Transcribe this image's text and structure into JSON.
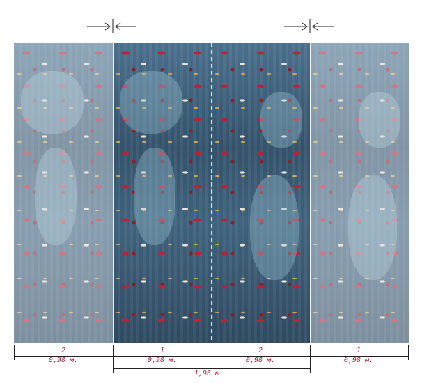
{
  "panels": [
    {
      "number": "2",
      "width": "0,98 м."
    },
    {
      "number": "1",
      "width": "0,98 м."
    },
    {
      "number": "2",
      "width": "0,98 м."
    },
    {
      "number": "1",
      "width": "0,98 м."
    }
  ],
  "total_width": "1,96 м.",
  "colors": {
    "label": "#b1223d",
    "panel_base": "#3a5a74",
    "accent_red": "#b7243a"
  }
}
